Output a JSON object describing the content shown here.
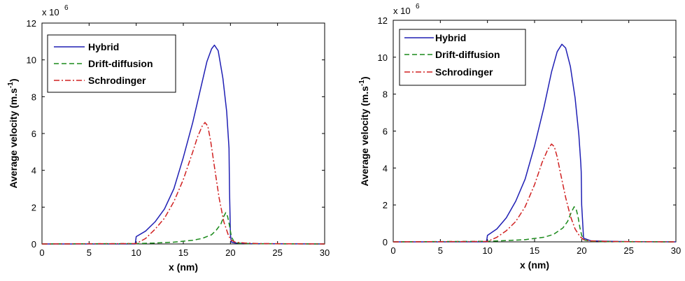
{
  "chart_data": [
    {
      "type": "line",
      "title": "",
      "xlabel": "x (nm)",
      "ylabel": "Average velocity (m.s",
      "ylabel_sup": "-1",
      "ylabel_close": ")",
      "xlim": [
        0,
        30
      ],
      "ylim": [
        0,
        12
      ],
      "y_multiplier": "x 10",
      "y_multiplier_exp": "6",
      "x_ticks": [
        0,
        5,
        10,
        15,
        20,
        25,
        30
      ],
      "y_ticks": [
        0,
        2,
        4,
        6,
        8,
        10,
        12
      ],
      "grid": false,
      "legend_position": "top-left",
      "series": [
        {
          "name": "Hybrid",
          "color": "#1f1fb4",
          "dash": "solid",
          "x": [
            0,
            9.9,
            10.0,
            11,
            12,
            13,
            14,
            15,
            16,
            17,
            17.5,
            18.0,
            18.3,
            18.7,
            19.2,
            19.6,
            19.8,
            19.85,
            19.9,
            20.0,
            20.1,
            20.5,
            22,
            25,
            30
          ],
          "y": [
            0,
            0,
            0.4,
            0.7,
            1.2,
            1.9,
            3.0,
            4.7,
            6.6,
            8.8,
            9.9,
            10.6,
            10.8,
            10.5,
            9.0,
            7.2,
            5.6,
            5.2,
            3.0,
            0.5,
            0.1,
            0.05,
            0.02,
            0.01,
            0
          ]
        },
        {
          "name": "Drift-diffusion",
          "color": "#1a8a1a",
          "dash": "dashed",
          "x": [
            0,
            10,
            12,
            14,
            16,
            17,
            18,
            18.5,
            19,
            19.3,
            19.5,
            19.7,
            19.9,
            20.1,
            20.4,
            21,
            23,
            30
          ],
          "y": [
            0,
            0.02,
            0.05,
            0.1,
            0.2,
            0.3,
            0.5,
            0.75,
            1.1,
            1.5,
            1.7,
            1.5,
            1.0,
            0.4,
            0.1,
            0.03,
            0.01,
            0
          ]
        },
        {
          "name": "Schrodinger",
          "color": "#d02020",
          "dash": "dashdot",
          "x": [
            0,
            10,
            11,
            12,
            13,
            14,
            15,
            16,
            16.5,
            17,
            17.3,
            17.6,
            17.9,
            18.3,
            18.8,
            19.3,
            19.8,
            20.1,
            20.5,
            21.5,
            23,
            30
          ],
          "y": [
            0,
            0.02,
            0.3,
            0.8,
            1.4,
            2.3,
            3.5,
            5.0,
            5.8,
            6.4,
            6.6,
            6.4,
            5.6,
            4.2,
            2.5,
            1.2,
            0.45,
            0.2,
            0.1,
            0.05,
            0.02,
            0
          ]
        }
      ]
    },
    {
      "type": "line",
      "title": "",
      "xlabel": "x (nm)",
      "ylabel": "Average velocity (m.s",
      "ylabel_sup": "-1",
      "ylabel_close": ")",
      "xlim": [
        0,
        30
      ],
      "ylim": [
        0,
        12
      ],
      "y_multiplier": "x 10",
      "y_multiplier_exp": "6",
      "x_ticks": [
        0,
        5,
        10,
        15,
        20,
        25,
        30
      ],
      "y_ticks": [
        0,
        2,
        4,
        6,
        8,
        10,
        12
      ],
      "grid": false,
      "legend_position": "top-left",
      "series": [
        {
          "name": "Hybrid",
          "color": "#1f1fb4",
          "dash": "solid",
          "x": [
            0,
            9.9,
            10.0,
            11,
            12,
            13,
            14,
            15,
            16,
            16.8,
            17.4,
            17.9,
            18.3,
            18.8,
            19.3,
            19.7,
            19.9,
            19.95,
            20.0,
            20.2,
            21,
            25,
            30
          ],
          "y": [
            0,
            0,
            0.35,
            0.7,
            1.3,
            2.2,
            3.4,
            5.2,
            7.3,
            9.2,
            10.3,
            10.7,
            10.5,
            9.5,
            7.8,
            5.8,
            4.3,
            3.8,
            2.0,
            0.2,
            0.05,
            0.01,
            0
          ]
        },
        {
          "name": "Drift-diffusion",
          "color": "#1a8a1a",
          "dash": "dashed",
          "x": [
            0,
            10,
            12,
            14,
            16,
            17,
            18,
            18.5,
            18.9,
            19.2,
            19.4,
            19.6,
            19.8,
            20.0,
            20.3,
            21,
            23,
            30
          ],
          "y": [
            0,
            0.03,
            0.07,
            0.12,
            0.25,
            0.4,
            0.75,
            1.1,
            1.6,
            1.9,
            1.8,
            1.4,
            0.8,
            0.35,
            0.1,
            0.03,
            0.01,
            0
          ]
        },
        {
          "name": "Schrodinger",
          "color": "#d02020",
          "dash": "dashdot",
          "x": [
            0,
            10,
            11,
            12,
            13,
            14,
            15,
            15.8,
            16.4,
            16.8,
            17.1,
            17.4,
            17.8,
            18.3,
            18.8,
            19.3,
            19.8,
            20.2,
            21,
            23,
            30
          ],
          "y": [
            0,
            0.02,
            0.25,
            0.6,
            1.1,
            1.9,
            3.1,
            4.3,
            5.0,
            5.3,
            5.15,
            4.6,
            3.6,
            2.4,
            1.4,
            0.7,
            0.3,
            0.12,
            0.05,
            0.02,
            0
          ]
        }
      ]
    }
  ]
}
